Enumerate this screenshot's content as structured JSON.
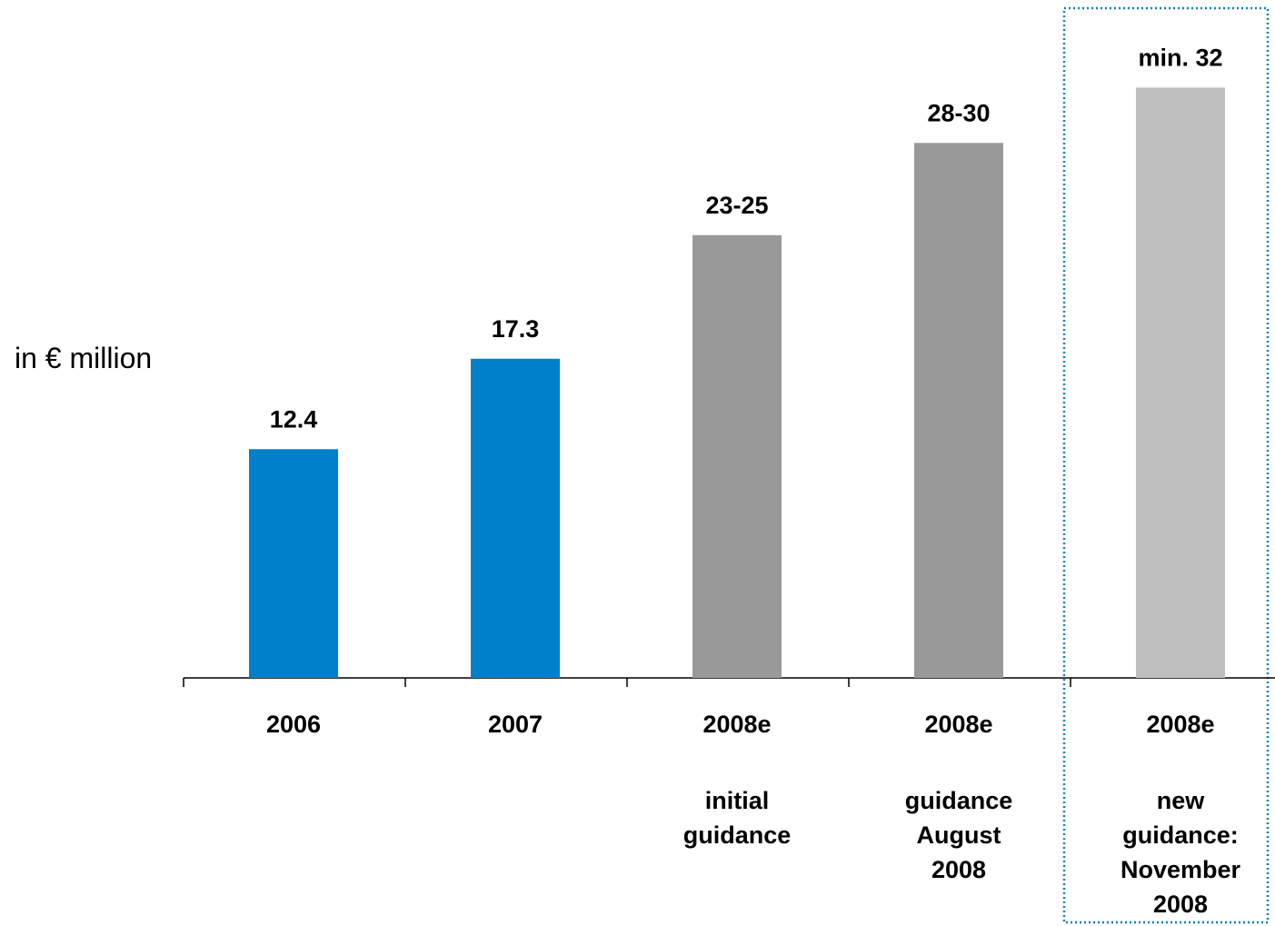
{
  "chart_data": {
    "type": "bar",
    "ylabel": "in € million",
    "xlabel": "",
    "title": "",
    "ylim": [
      0,
      37.5
    ],
    "categories": [
      "2006",
      "2007",
      "2008e",
      "2008e",
      "2008e"
    ],
    "subcategories": [
      [],
      [],
      [
        "initial",
        "guidance"
      ],
      [
        "guidance",
        "August",
        "2008"
      ],
      [
        "new",
        "guidance:",
        "November",
        "2008"
      ]
    ],
    "values": [
      12.4,
      17.3,
      24,
      29,
      32
    ],
    "value_labels": [
      "12.4",
      "17.3",
      "23-25",
      "28-30",
      "min. 32"
    ],
    "bar_colors": [
      "#0080C8",
      "#0080C8",
      "#999999",
      "#999999",
      "#BFBFBF"
    ],
    "highlight": {
      "index": 4,
      "style": "dotted-box",
      "color": "#0080C8"
    },
    "grid": false,
    "legend": "none"
  }
}
